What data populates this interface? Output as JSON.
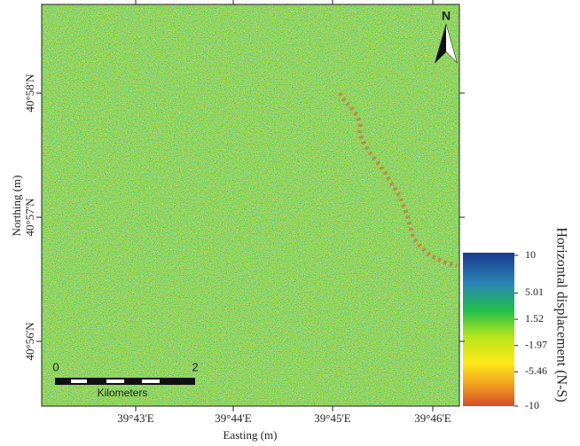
{
  "map": {
    "x_tick_labels": [
      "39°43'E",
      "39°44'E",
      "39°45'E",
      "39°46'E"
    ],
    "y_tick_labels": [
      "40°58'N",
      "40°57'N",
      "40°56'N"
    ],
    "x_axis_label": "Easting (m)",
    "y_axis_label": "Northing (m)",
    "north_label": "N",
    "scale_bar": {
      "start": "0",
      "end": "2",
      "unit": "Kilometers"
    },
    "colorbar": {
      "title": "Horizontal displacement (N-S)",
      "range": [
        -10,
        10
      ],
      "ticks": [
        10,
        5.01,
        1.52,
        -1.97,
        -5.46,
        -10
      ]
    }
  }
}
